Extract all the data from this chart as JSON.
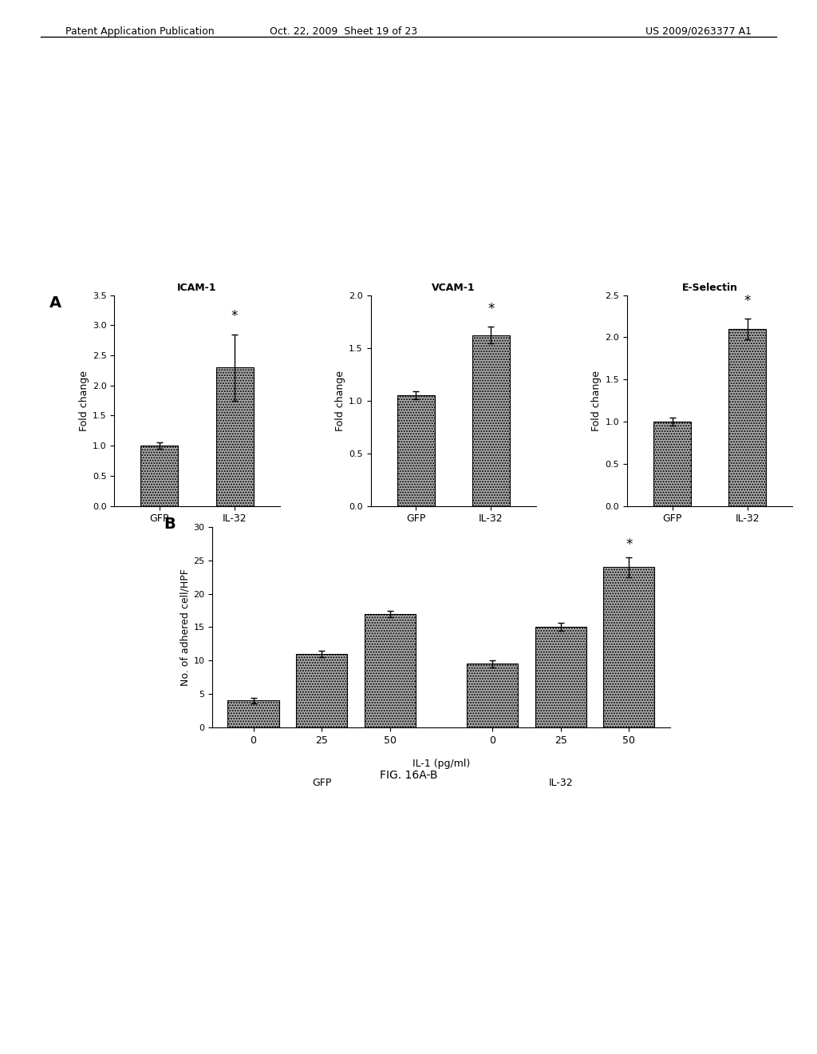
{
  "header_left": "Patent Application Publication",
  "header_mid": "Oct. 22, 2009  Sheet 19 of 23",
  "header_right": "US 2009/0263377 A1",
  "figure_label": "FIG. 16A-B",
  "panel_A_label": "A",
  "panel_B_label": "B",
  "icam1": {
    "title": "ICAM-1",
    "ylabel": "Fold change",
    "categories": [
      "GFP",
      "IL-32"
    ],
    "values": [
      1.0,
      2.3
    ],
    "errors": [
      0.05,
      0.55
    ],
    "ylim": [
      0,
      3.5
    ],
    "yticks": [
      0,
      0.5,
      1,
      1.5,
      2,
      2.5,
      3,
      3.5
    ],
    "star_on": [
      1
    ],
    "bar_color": "#888888"
  },
  "vcam1": {
    "title": "VCAM-1",
    "ylabel": "Fold change",
    "categories": [
      "GFP",
      "IL-32"
    ],
    "values": [
      1.05,
      1.62
    ],
    "errors": [
      0.04,
      0.08
    ],
    "ylim": [
      0,
      2.0
    ],
    "yticks": [
      0,
      0.5,
      1,
      1.5,
      2
    ],
    "star_on": [
      1
    ],
    "bar_color": "#888888"
  },
  "eselectin": {
    "title": "E-Selectin",
    "ylabel": "Fold change",
    "categories": [
      "GFP",
      "IL-32"
    ],
    "values": [
      1.0,
      2.1
    ],
    "errors": [
      0.05,
      0.12
    ],
    "ylim": [
      0,
      2.5
    ],
    "yticks": [
      0,
      0.5,
      1,
      1.5,
      2,
      2.5
    ],
    "star_on": [
      1
    ],
    "bar_color": "#888888"
  },
  "panel_b": {
    "ylabel": "No. of adhered cell/HPF",
    "xlabel": "IL-1 (pg/ml)",
    "groups": [
      "GFP",
      "IL-32"
    ],
    "x_labels": [
      "0",
      "25",
      "50",
      "0",
      "25",
      "50"
    ],
    "values": [
      4.0,
      11.0,
      17.0,
      9.5,
      15.0,
      24.0
    ],
    "errors": [
      0.4,
      0.5,
      0.5,
      0.5,
      0.6,
      1.5
    ],
    "ylim": [
      0,
      30
    ],
    "yticks": [
      0,
      5,
      10,
      15,
      20,
      25,
      30
    ],
    "star_on": [
      5
    ],
    "bar_color": "#888888"
  },
  "background_color": "#ffffff",
  "text_color": "#000000"
}
